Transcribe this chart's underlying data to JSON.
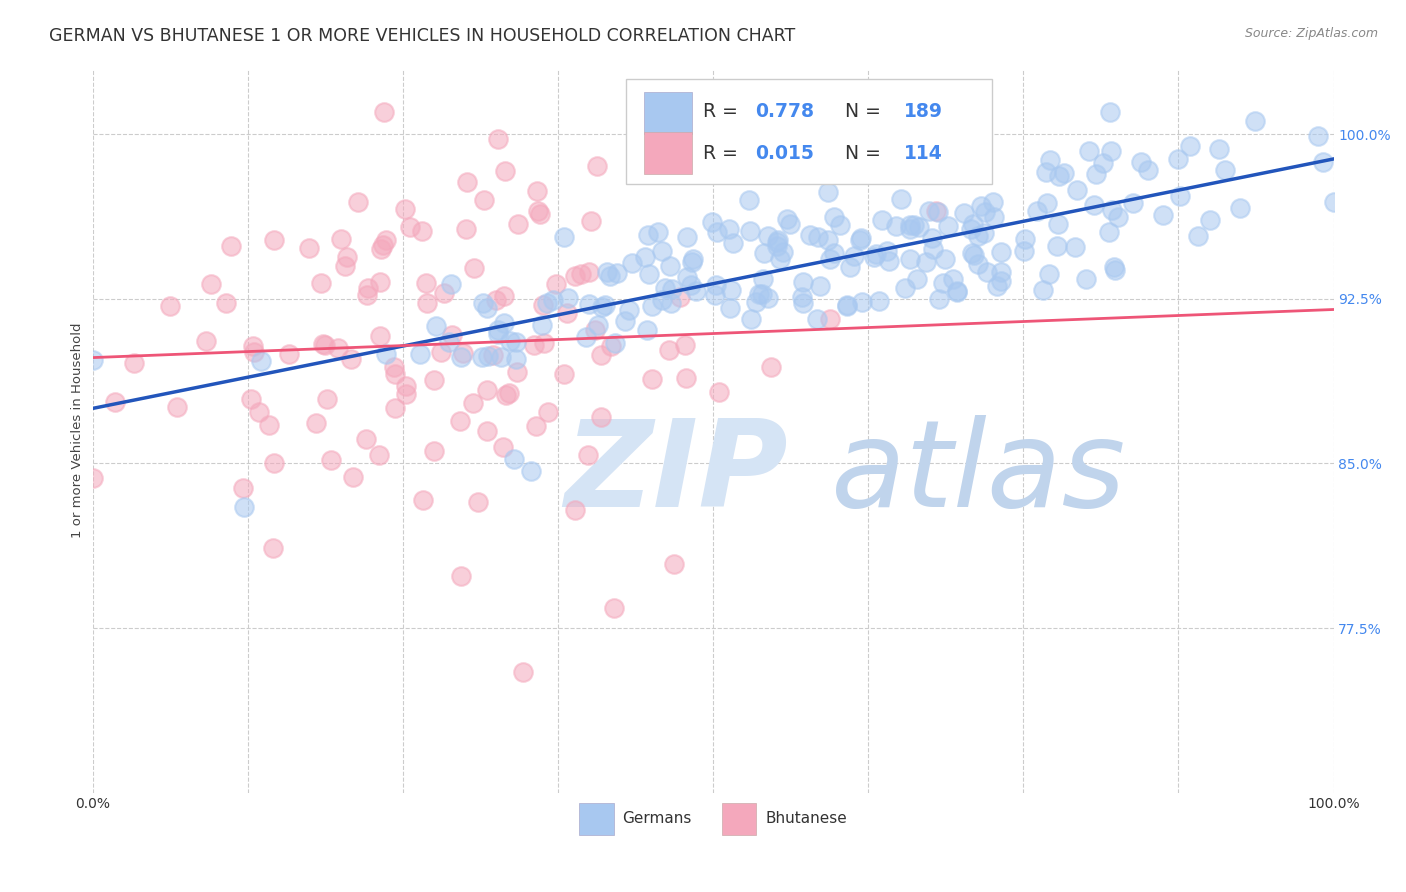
{
  "title": "GERMAN VS BHUTANESE 1 OR MORE VEHICLES IN HOUSEHOLD CORRELATION CHART",
  "source": "Source: ZipAtlas.com",
  "ylabel": "1 or more Vehicles in Household",
  "ytick_labels": [
    "100.0%",
    "92.5%",
    "85.0%",
    "77.5%"
  ],
  "ytick_values": [
    1.0,
    0.925,
    0.85,
    0.775
  ],
  "xlim": [
    0.0,
    1.0
  ],
  "ylim": [
    0.7,
    1.03
  ],
  "german_R": 0.778,
  "german_N": 189,
  "bhutanese_R": 0.015,
  "bhutanese_N": 114,
  "german_color": "#a8c8f0",
  "bhutanese_color": "#f4a8bc",
  "german_line_color": "#2255bb",
  "bhutanese_line_color": "#ee5577",
  "background_color": "#ffffff",
  "watermark_zip": "ZIP",
  "watermark_atlas": "atlas",
  "watermark_color_zip": "#c8d8f0",
  "watermark_color_atlas": "#b0c8e8",
  "grid_color": "#cccccc",
  "title_fontsize": 12.5,
  "axis_label_fontsize": 9.5,
  "tick_fontsize": 10,
  "legend_R_color": "#333333",
  "legend_N_color": "#4488ee",
  "legend_val_color": "#4488ee"
}
